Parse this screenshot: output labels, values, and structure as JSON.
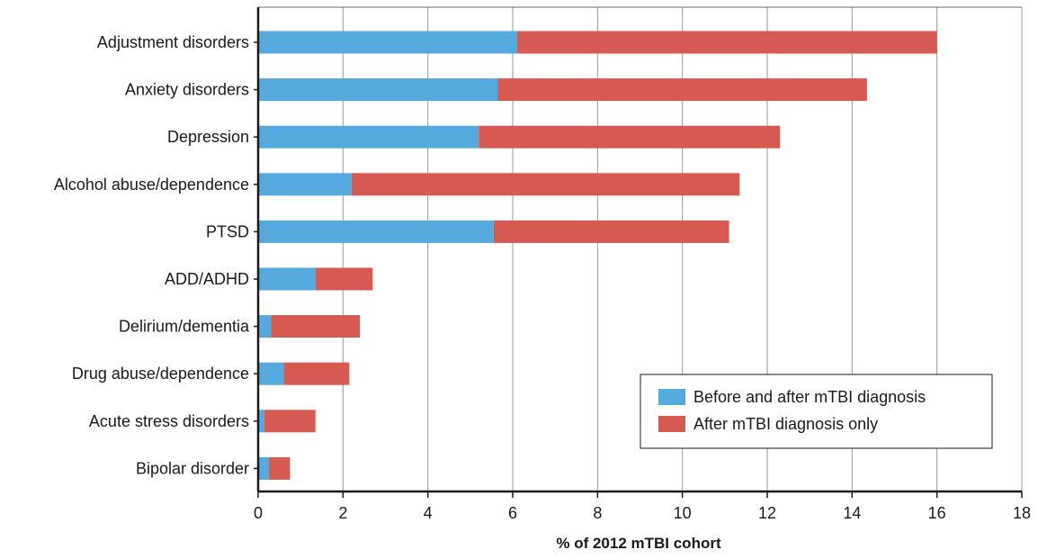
{
  "chart_data": {
    "type": "bar",
    "orientation": "horizontal",
    "stacked": true,
    "title": "",
    "xlabel": "% of 2012 mTBI cohort",
    "ylabel": "",
    "xlim": [
      0,
      18
    ],
    "xticks": [
      0,
      2,
      4,
      6,
      8,
      10,
      12,
      14,
      16,
      18
    ],
    "grid": "vertical",
    "legend_position": "bottom-right",
    "categories": [
      "Adjustment disorders",
      "Anxiety disorders",
      "Depression",
      "Alcohol abuse/dependence",
      "PTSD",
      "ADD/ADHD",
      "Delirium/dementia",
      "Drug abuse/dependence",
      "Acute stress disorders",
      "Bipolar disorder"
    ],
    "series": [
      {
        "name": "Before and after mTBI diagnosis",
        "color": "#56a9dc",
        "values": [
          6.1,
          5.65,
          5.2,
          2.2,
          5.55,
          1.35,
          0.3,
          0.6,
          0.15,
          0.25
        ]
      },
      {
        "name": "After mTBI diagnosis only",
        "color": "#d65952",
        "values": [
          9.9,
          8.7,
          7.1,
          9.15,
          5.55,
          1.35,
          2.1,
          1.55,
          1.2,
          0.5
        ]
      }
    ]
  }
}
